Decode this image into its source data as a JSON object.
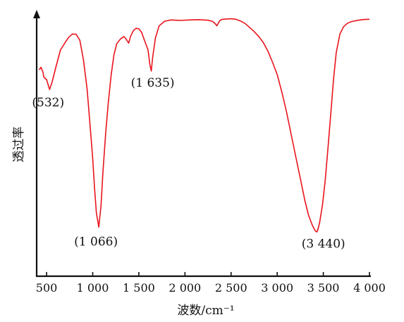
{
  "chart_data": {
    "type": "line",
    "title": "",
    "xlabel": "波数/cm⁻¹",
    "ylabel": "透过率",
    "xlim": [
      400,
      4000
    ],
    "ylim": [
      0,
      1
    ],
    "grid": false,
    "legend": "none",
    "line_color": "#e8141c",
    "x_ticks": [
      500,
      1000,
      1500,
      2000,
      2500,
      3000,
      3500,
      4000
    ],
    "x_tick_labels": [
      "500",
      "1 000",
      "1 500",
      "2 000",
      "2 500",
      "3 000",
      "3 500",
      "4 000"
    ],
    "annotations": [
      {
        "text": "(532)",
        "x": 532,
        "y": 0.64
      },
      {
        "text": "(1 066)",
        "x": 1066,
        "y": 0.34
      },
      {
        "text": "(1 635)",
        "x": 1635,
        "y": 0.77
      },
      {
        "text": "(3 440)",
        "x": 3440,
        "y": 0.37
      }
    ],
    "series": [
      {
        "x": [
          420,
          440,
          460,
          470,
          500,
          532,
          560,
          600,
          650,
          700,
          740,
          780,
          820,
          860,
          900,
          940,
          970,
          1000,
          1020,
          1040,
          1066,
          1090,
          1110,
          1140,
          1170,
          1200,
          1230,
          1260,
          1300,
          1340,
          1370,
          1390,
          1410,
          1440,
          1470,
          1500,
          1530,
          1560,
          1600,
          1620,
          1635,
          1650,
          1680,
          1720,
          1780,
          1850,
          1950,
          2050,
          2150,
          2250,
          2300,
          2330,
          2345,
          2360,
          2380,
          2400,
          2450,
          2500,
          2550,
          2600,
          2650,
          2700,
          2750,
          2800,
          2850,
          2900,
          2950,
          3000,
          3050,
          3100,
          3150,
          3200,
          3250,
          3300,
          3340,
          3380,
          3410,
          3430,
          3440,
          3460,
          3490,
          3520,
          3550,
          3580,
          3610,
          3640,
          3680,
          3720,
          3760,
          3800,
          3850,
          3900,
          3950,
          4000
        ],
        "y": [
          0.78,
          0.79,
          0.77,
          0.75,
          0.74,
          0.7,
          0.73,
          0.79,
          0.86,
          0.89,
          0.912,
          0.925,
          0.924,
          0.9,
          0.82,
          0.7,
          0.56,
          0.42,
          0.3,
          0.2,
          0.142,
          0.23,
          0.36,
          0.52,
          0.65,
          0.76,
          0.84,
          0.885,
          0.905,
          0.915,
          0.9,
          0.888,
          0.915,
          0.938,
          0.948,
          0.946,
          0.932,
          0.9,
          0.86,
          0.8,
          0.775,
          0.83,
          0.91,
          0.958,
          0.977,
          0.982,
          0.98,
          0.982,
          0.983,
          0.981,
          0.976,
          0.966,
          0.958,
          0.968,
          0.98,
          0.984,
          0.986,
          0.987,
          0.985,
          0.978,
          0.968,
          0.952,
          0.935,
          0.915,
          0.89,
          0.855,
          0.81,
          0.76,
          0.69,
          0.61,
          0.52,
          0.43,
          0.34,
          0.25,
          0.19,
          0.15,
          0.128,
          0.122,
          0.13,
          0.16,
          0.23,
          0.33,
          0.46,
          0.6,
          0.74,
          0.85,
          0.925,
          0.955,
          0.968,
          0.975,
          0.979,
          0.982,
          0.984,
          0.985
        ]
      }
    ]
  }
}
